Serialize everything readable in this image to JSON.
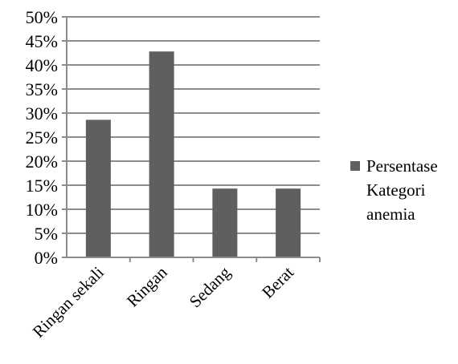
{
  "chart_data": {
    "type": "bar",
    "categories": [
      "Ringan sekali",
      "Ringan",
      "Sedang",
      "Berat"
    ],
    "series": [
      {
        "name": "Persentase Kategori anemia",
        "values": [
          28.6,
          42.8,
          14.3,
          14.3
        ]
      }
    ],
    "y_ticks": [
      "0%",
      "5%",
      "10%",
      "15%",
      "20%",
      "25%",
      "30%",
      "35%",
      "40%",
      "45%",
      "50%"
    ],
    "ylim": [
      0,
      50
    ],
    "y_unit": "%",
    "grid": true,
    "legend": {
      "position": "right",
      "lines": [
        "Persentase",
        "Kategori",
        "anemia"
      ]
    },
    "colors": {
      "bar": "#5f5f5f",
      "grid": "#8c8c8c",
      "axis": "#8c8c8c"
    }
  }
}
